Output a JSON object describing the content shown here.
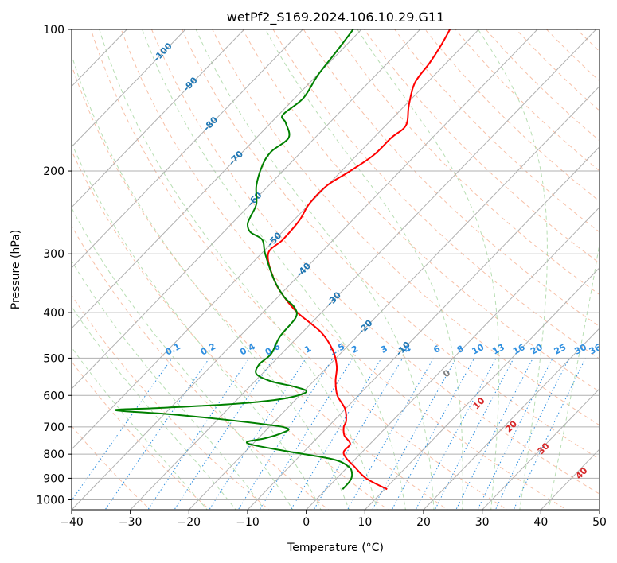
{
  "chart_data": {
    "type": "line",
    "title": "wetPf2_S169.2024.106.10.29.G11",
    "xlabel": "Temperature (°C)",
    "ylabel": "Pressure (hPa)",
    "xlim": [
      -40,
      50
    ],
    "ylim": [
      1050,
      100
    ],
    "y_scale": "log",
    "grid": true,
    "x_ticks": [
      -40,
      -30,
      -20,
      -10,
      0,
      10,
      20,
      30,
      40,
      50
    ],
    "y_ticks": [
      100,
      200,
      300,
      400,
      500,
      600,
      700,
      800,
      900,
      1000
    ],
    "series": [
      {
        "kind": "temperature",
        "color": "#ff0000",
        "points": [
          {
            "p": 950,
            "t": 13.8
          },
          {
            "p": 900,
            "t": 10.2
          },
          {
            "p": 850,
            "t": 8.2
          },
          {
            "p": 815,
            "t": 6.8
          },
          {
            "p": 790,
            "t": 6.4
          },
          {
            "p": 760,
            "t": 7.5
          },
          {
            "p": 730,
            "t": 6.5
          },
          {
            "p": 700,
            "t": 6.4
          },
          {
            "p": 680,
            "t": 6.8
          },
          {
            "p": 640,
            "t": 6.6
          },
          {
            "p": 600,
            "t": 5.3
          },
          {
            "p": 560,
            "t": 5.0
          },
          {
            "p": 520,
            "t": 5.2
          },
          {
            "p": 480,
            "t": 4.5
          },
          {
            "p": 440,
            "t": 2.5
          },
          {
            "p": 400,
            "t": -1.5
          },
          {
            "p": 370,
            "t": -3.8
          },
          {
            "p": 340,
            "t": -5.5
          },
          {
            "p": 300,
            "t": -6.5
          },
          {
            "p": 280,
            "t": -4.0
          },
          {
            "p": 255,
            "t": -1.2
          },
          {
            "p": 235,
            "t": 0.5
          },
          {
            "p": 215,
            "t": 3.5
          },
          {
            "p": 200,
            "t": 7.5
          },
          {
            "p": 185,
            "t": 11.5
          },
          {
            "p": 170,
            "t": 14.5
          },
          {
            "p": 160,
            "t": 17.0
          },
          {
            "p": 145,
            "t": 17.5
          },
          {
            "p": 130,
            "t": 18.5
          },
          {
            "p": 118,
            "t": 21.0
          },
          {
            "p": 108,
            "t": 23.0
          },
          {
            "p": 100,
            "t": 24.5
          }
        ]
      },
      {
        "kind": "dewpoint",
        "color": "#008000",
        "points": [
          {
            "p": 950,
            "t": 6.2
          },
          {
            "p": 910,
            "t": 7.5
          },
          {
            "p": 880,
            "t": 7.8
          },
          {
            "p": 850,
            "t": 7.2
          },
          {
            "p": 820,
            "t": 4.5
          },
          {
            "p": 790,
            "t": -3.0
          },
          {
            "p": 765,
            "t": -9.0
          },
          {
            "p": 752,
            "t": -10.0
          },
          {
            "p": 740,
            "t": -7.0
          },
          {
            "p": 720,
            "t": -4.0
          },
          {
            "p": 705,
            "t": -3.2
          },
          {
            "p": 690,
            "t": -7.5
          },
          {
            "p": 660,
            "t": -22.0
          },
          {
            "p": 645,
            "t": -32.5
          },
          {
            "p": 638,
            "t": -25.0
          },
          {
            "p": 625,
            "t": -12.0
          },
          {
            "p": 610,
            "t": -4.0
          },
          {
            "p": 590,
            "t": 0.0
          },
          {
            "p": 575,
            "t": -2.0
          },
          {
            "p": 560,
            "t": -6.0
          },
          {
            "p": 540,
            "t": -8.5
          },
          {
            "p": 515,
            "t": -8.0
          },
          {
            "p": 490,
            "t": -6.0
          },
          {
            "p": 450,
            "t": -4.5
          },
          {
            "p": 410,
            "t": -1.8
          },
          {
            "p": 390,
            "t": -2.0
          },
          {
            "p": 370,
            "t": -3.8
          },
          {
            "p": 340,
            "t": -5.5
          },
          {
            "p": 300,
            "t": -7.0
          },
          {
            "p": 280,
            "t": -7.5
          },
          {
            "p": 270,
            "t": -9.5
          },
          {
            "p": 260,
            "t": -10.0
          },
          {
            "p": 250,
            "t": -9.5
          },
          {
            "p": 235,
            "t": -8.5
          },
          {
            "p": 215,
            "t": -8.5
          },
          {
            "p": 195,
            "t": -7.5
          },
          {
            "p": 182,
            "t": -6.0
          },
          {
            "p": 170,
            "t": -3.0
          },
          {
            "p": 158,
            "t": -3.5
          },
          {
            "p": 152,
            "t": -4.0
          },
          {
            "p": 140,
            "t": -0.5
          },
          {
            "p": 125,
            "t": 2.0
          },
          {
            "p": 112,
            "t": 5.0
          },
          {
            "p": 100,
            "t": 8.0
          }
        ]
      }
    ],
    "isotherm_labels": [
      {
        "text": "-100",
        "t": -100,
        "p": 112
      },
      {
        "text": "-90",
        "t": -90,
        "p": 131
      },
      {
        "text": "-80",
        "t": -80,
        "p": 159
      },
      {
        "text": "-70",
        "t": -70,
        "p": 188
      },
      {
        "text": "-60",
        "t": -60,
        "p": 230
      },
      {
        "text": "-50",
        "t": -50,
        "p": 280
      },
      {
        "text": "-40",
        "t": -40,
        "p": 325
      },
      {
        "text": "-30",
        "t": -30,
        "p": 375
      },
      {
        "text": "-20",
        "t": -20,
        "p": 430
      },
      {
        "text": "-10",
        "t": -10,
        "p": 478
      }
    ],
    "mixing_ratio_labels": [
      {
        "text": "0.1",
        "t": -22.5
      },
      {
        "text": "0.2",
        "t": -16.5
      },
      {
        "text": "0.4",
        "t": -9.8
      },
      {
        "text": "0.6",
        "t": -5.5
      },
      {
        "text": "1",
        "t": 0.5
      },
      {
        "text": "1.5",
        "t": 5.5
      },
      {
        "text": "2",
        "t": 8.5
      },
      {
        "text": "3",
        "t": 13.5
      },
      {
        "text": "4",
        "t": 17.5
      },
      {
        "text": "6",
        "t": 22.5
      },
      {
        "text": "8",
        "t": 26.5
      },
      {
        "text": "10",
        "t": 29.5
      },
      {
        "text": "13",
        "t": 33.0
      },
      {
        "text": "16",
        "t": 36.5
      },
      {
        "text": "20",
        "t": 39.5
      },
      {
        "text": "25",
        "t": 43.5
      },
      {
        "text": "30",
        "t": 47.0
      },
      {
        "text": "36",
        "t": 49.5
      }
    ],
    "mixing_ratio_label_p": 500,
    "dry_adiabat_labels": [
      {
        "text": "10",
        "t": 29.5,
        "p": 625
      },
      {
        "text": "20",
        "t": 35.0,
        "p": 700
      },
      {
        "text": "30",
        "t": 40.5,
        "p": 780
      },
      {
        "text": "40",
        "t": 47.0,
        "p": 880
      }
    ],
    "moist_adiabat_labels": [
      {
        "text": "0",
        "t": 24.0,
        "p": 540
      }
    ],
    "colors": {
      "temperature": "#ff0000",
      "dewpoint": "#008000",
      "isotherm_label": "#1f77b4",
      "mixing_ratio": "#2f8fe0",
      "dry_adiabat_label": "#d62728",
      "moist_adiabat_label": "#7f7f7f",
      "grid": "#b0b0b0",
      "dry_adiabat": "#f4a582",
      "moist_adiabat": "#a6d6a0"
    }
  }
}
